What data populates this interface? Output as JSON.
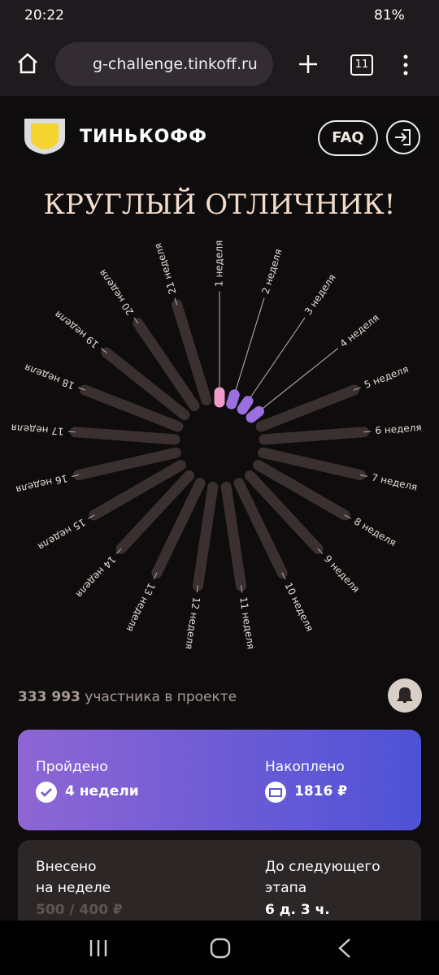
{
  "status_bar": {
    "time": "20:22",
    "battery": "81%"
  },
  "browser": {
    "url": "g-challenge.tinkoff.ru",
    "tabs": "11"
  },
  "header": {
    "brand": "ТИНЬКОФФ",
    "faq": "FAQ"
  },
  "title": "КРУГЛЫЙ ОТЛИЧНИК!",
  "weeks": [
    {
      "label": "1 неделя",
      "color": "#f29ac8"
    },
    {
      "label": "2 неделя",
      "color": "#9b6fe0"
    },
    {
      "label": "3 неделя",
      "color": "#9b6fe0"
    },
    {
      "label": "4 неделя",
      "color": "#9b6fe0"
    },
    {
      "label": "5 неделя"
    },
    {
      "label": "6 неделя"
    },
    {
      "label": "7 неделя"
    },
    {
      "label": "8 неделя"
    },
    {
      "label": "9 неделя"
    },
    {
      "label": "10 неделя"
    },
    {
      "label": "11 неделя"
    },
    {
      "label": "12 неделя"
    },
    {
      "label": "13 неделя"
    },
    {
      "label": "14 неделя"
    },
    {
      "label": "15 неделя"
    },
    {
      "label": "16 неделя"
    },
    {
      "label": "17 неделя"
    },
    {
      "label": "18 неделя"
    },
    {
      "label": "19 неделя"
    },
    {
      "label": "20 неделя"
    },
    {
      "label": "21 неделя"
    }
  ],
  "participants": {
    "count": "333 993",
    "text": "участника в проекте"
  },
  "progress_card": {
    "passed_label": "Пройдено",
    "passed_value": "4 недели",
    "saved_label": "Накоплено",
    "saved_value": "1816 ₽"
  },
  "week_card": {
    "deposited_label": [
      "Внесено",
      "на неделе"
    ],
    "deposited_value": "500 / 400 ₽",
    "next_label": [
      "До следующего",
      "этапа"
    ],
    "next_value": "6 д. 3 ч."
  }
}
